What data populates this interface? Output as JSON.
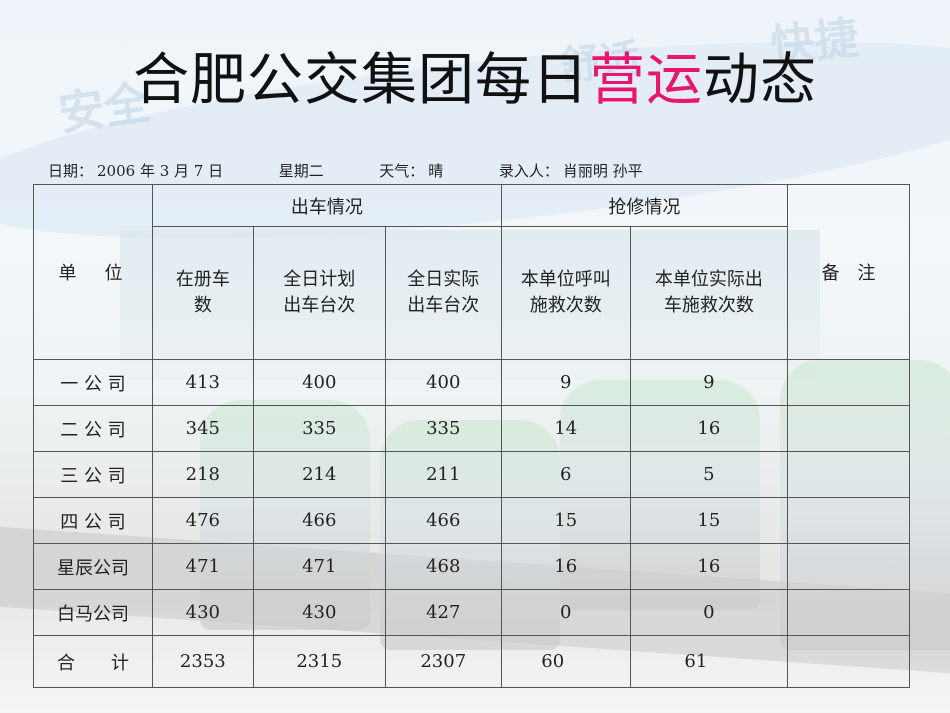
{
  "background": {
    "watermarks": [
      "安全",
      "舒适",
      "快捷"
    ]
  },
  "title": {
    "part1": "合肥公交集团每日",
    "highlight": "营运",
    "part2": "动态",
    "highlight_color": "#e8166e"
  },
  "info": {
    "date_label": "日期：",
    "date_value": "2006 年 3 月 7 日",
    "weekday": "星期二",
    "weather_label": "天气：",
    "weather_value": "晴",
    "entry_label": "录入人：",
    "entry_value": "肖丽明  孙平"
  },
  "table": {
    "headers": {
      "unit": "单　位",
      "dispatch_group": "出车情况",
      "repair_group": "抢修情况",
      "remarks": "备　注",
      "registered": [
        "在册车",
        "数"
      ],
      "planned": [
        "全日计划",
        "出车台次"
      ],
      "actual": [
        "全日实际",
        "出车台次"
      ],
      "rescue_calls": [
        "本单位呼叫",
        "施救次数"
      ],
      "rescue_dispatched": [
        "本单位实际出",
        "车施救次数"
      ]
    },
    "rows": [
      {
        "unit": "一 公 司",
        "registered": "413",
        "planned": "400",
        "actual": "400",
        "rescue_calls": "9",
        "rescue_dispatched": "9",
        "remarks": ""
      },
      {
        "unit": "二 公 司",
        "registered": "345",
        "planned": "335",
        "actual": "335",
        "rescue_calls": "14",
        "rescue_dispatched": "16",
        "remarks": ""
      },
      {
        "unit": "三 公 司",
        "registered": "218",
        "planned": "214",
        "actual": "211",
        "rescue_calls": "6",
        "rescue_dispatched": "5",
        "remarks": ""
      },
      {
        "unit": "四 公 司",
        "registered": "476",
        "planned": "466",
        "actual": "466",
        "rescue_calls": "15",
        "rescue_dispatched": "15",
        "remarks": ""
      },
      {
        "unit": "星辰公司",
        "registered": "471",
        "planned": "471",
        "actual": "468",
        "rescue_calls": "16",
        "rescue_dispatched": "16",
        "remarks": ""
      },
      {
        "unit": "白马公司",
        "registered": "430",
        "planned": "430",
        "actual": "427",
        "rescue_calls": "0",
        "rescue_dispatched": "0",
        "remarks": ""
      }
    ],
    "total": {
      "unit": "合　　计",
      "registered": "2353",
      "planned": "2315",
      "actual": "2307",
      "rescue_calls": "60",
      "rescue_dispatched": "61",
      "remarks": ""
    }
  }
}
